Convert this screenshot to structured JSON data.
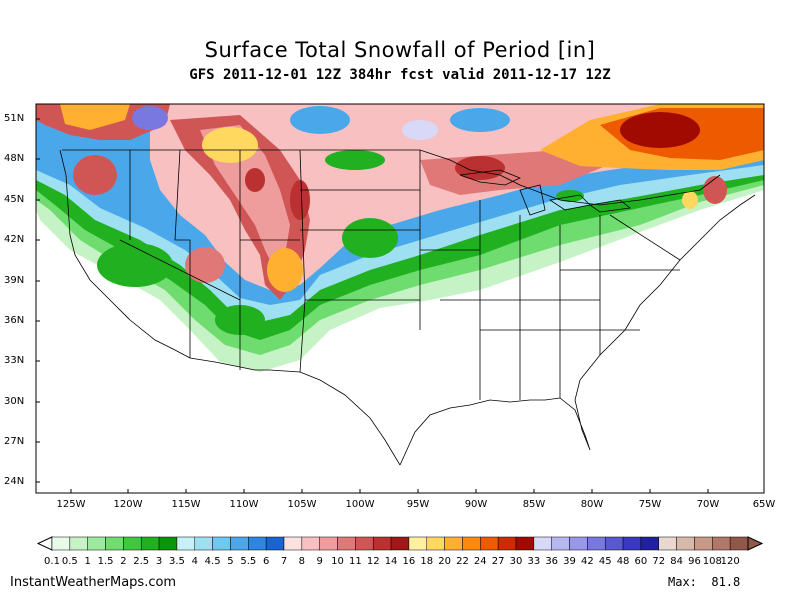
{
  "header": {
    "title": "Surface Total Snowfall of Period [in]",
    "subtitle": "GFS 2011-12-01 12Z 384hr fcst valid 2011-12-17 12Z"
  },
  "map": {
    "lat_labels": [
      "51N",
      "48N",
      "45N",
      "42N",
      "39N",
      "36N",
      "33N",
      "30N",
      "27N",
      "24N"
    ],
    "lon_labels": [
      "125W",
      "120W",
      "115W",
      "110W",
      "105W",
      "100W",
      "95W",
      "90W",
      "85W",
      "80W",
      "75W",
      "70W",
      "65W"
    ]
  },
  "colorbar": {
    "labels": [
      "0.1",
      "0.5",
      "1",
      "1.5",
      "2",
      "2.5",
      "3",
      "3.5",
      "4",
      "4.5",
      "5",
      "5.5",
      "6",
      "7",
      "8",
      "9",
      "10",
      "11",
      "12",
      "14",
      "16",
      "18",
      "20",
      "22",
      "24",
      "27",
      "30",
      "33",
      "36",
      "39",
      "42",
      "45",
      "48",
      "60",
      "72",
      "84",
      "96",
      "108",
      "120"
    ],
    "colors": [
      "#e8fbe8",
      "#c6f3c6",
      "#9de99d",
      "#6fdc6f",
      "#3fc83f",
      "#20b020",
      "#0a960a",
      "#c8f0f8",
      "#9ee0f2",
      "#6fc8ee",
      "#4aa8ea",
      "#2e86e0",
      "#1a64d2",
      "#fde0e0",
      "#f8c0c0",
      "#ee9c9c",
      "#e07878",
      "#d05656",
      "#bb3030",
      "#a01818",
      "#fff0a0",
      "#ffd860",
      "#ffb030",
      "#ff8a10",
      "#ee5a00",
      "#d02a00",
      "#a00a00",
      "#d8d8f8",
      "#b8b8f0",
      "#9898e8",
      "#7878e0",
      "#5858d0",
      "#3838c0",
      "#2020a0",
      "#e8d8d0",
      "#d8b8a8",
      "#c89888",
      "#b07868",
      "#905848"
    ]
  },
  "footer": {
    "site": "InstantWeatherMaps.com",
    "max_label": "Max:",
    "max_value": "81.8"
  }
}
